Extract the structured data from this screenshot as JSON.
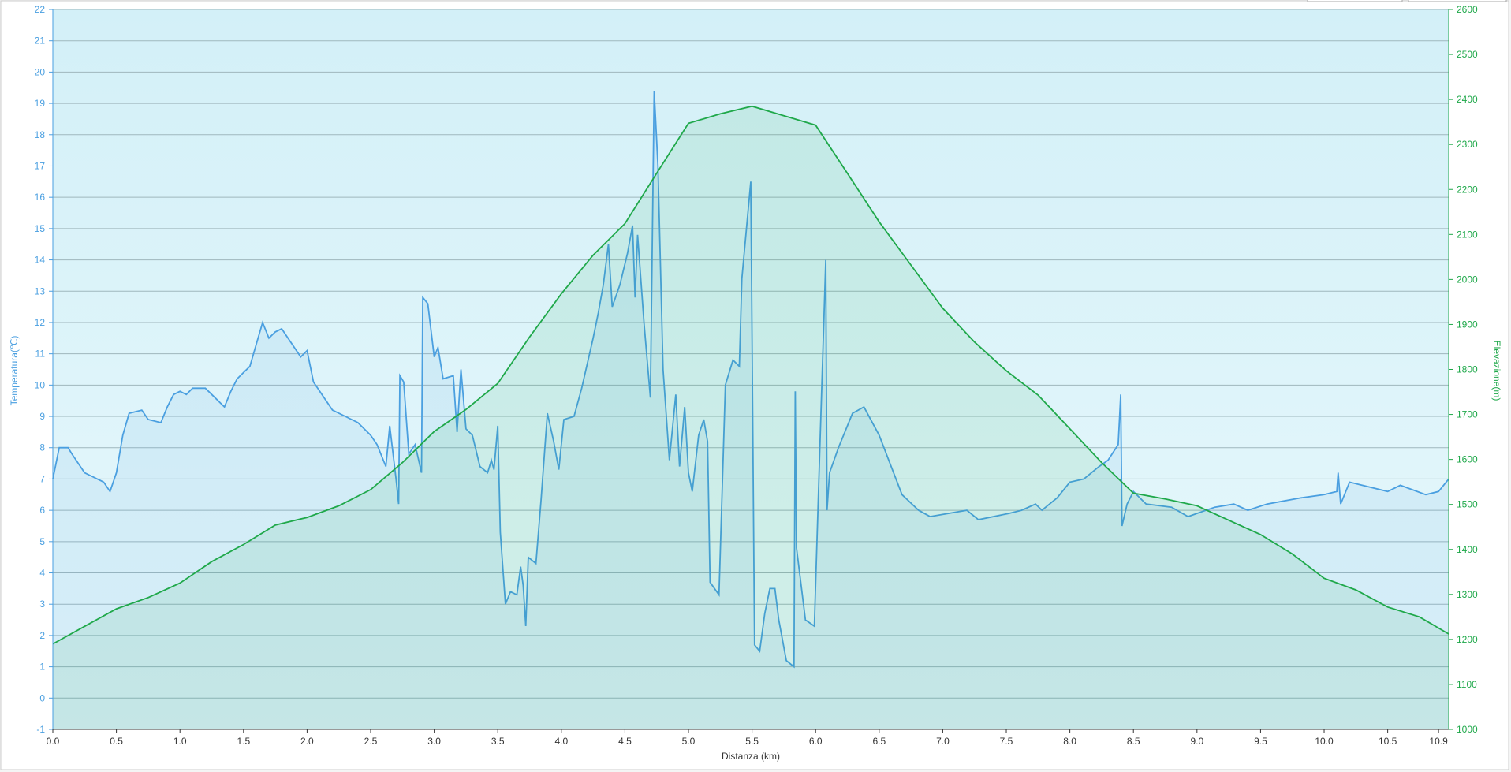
{
  "chart_data": {
    "type": "line",
    "xlabel": "Distanza  (km)",
    "ylabel": "Temperatura(℃)",
    "y2label": "Elevazione(m)",
    "grid": true,
    "xlim": [
      0,
      10.98
    ],
    "xticks": [
      {
        "value": 0,
        "label": "0.0"
      },
      0.5,
      {
        "value": 1,
        "label": "1.0"
      },
      1.5,
      {
        "value": 2,
        "label": "2.0"
      },
      2.5,
      {
        "value": 3,
        "label": "3.0"
      },
      3.5,
      {
        "value": 4,
        "label": "4.0"
      },
      4.5,
      {
        "value": 5,
        "label": "5.0"
      },
      5.5,
      {
        "value": 6,
        "label": "6.0"
      },
      6.5,
      {
        "value": 7,
        "label": "7.0"
      },
      7.5,
      {
        "value": 8,
        "label": "8.0"
      },
      8.5,
      {
        "value": 9,
        "label": "9.0"
      },
      9.5,
      {
        "value": 10,
        "label": "10.0"
      },
      10.5,
      10.9
    ],
    "ylim": [
      -1,
      22
    ],
    "yticks": [
      -1,
      0,
      1,
      2,
      3,
      4,
      5,
      6,
      7,
      8,
      9,
      10,
      11,
      12,
      13,
      14,
      15,
      16,
      17,
      18,
      19,
      20,
      21,
      22
    ],
    "y2lim": [
      1000,
      2600
    ],
    "y2ticks": [
      1000,
      1100,
      1200,
      1300,
      1400,
      1500,
      1600,
      1700,
      1800,
      1900,
      2000,
      2100,
      2200,
      2300,
      2400,
      2500,
      2600
    ],
    "series": [
      {
        "name": "Temperatura",
        "color": "#4a9fe0",
        "axis": "y",
        "x": [
          0,
          0.05,
          0.12,
          0.15,
          0.25,
          0.3,
          0.35,
          0.4,
          0.45,
          0.5,
          0.55,
          0.6,
          0.7,
          0.75,
          0.85,
          0.9,
          0.95,
          1.0,
          1.05,
          1.1,
          1.2,
          1.3,
          1.35,
          1.4,
          1.45,
          1.55,
          1.6,
          1.65,
          1.7,
          1.75,
          1.8,
          1.85,
          1.9,
          1.95,
          2.0,
          2.05,
          2.15,
          2.2,
          2.3,
          2.4,
          2.5,
          2.55,
          2.62,
          2.65,
          2.7,
          2.72,
          2.73,
          2.76,
          2.8,
          2.85,
          2.9,
          2.91,
          2.95,
          3.0,
          3.03,
          3.07,
          3.15,
          3.18,
          3.21,
          3.25,
          3.3,
          3.36,
          3.42,
          3.45,
          3.47,
          3.5,
          3.52,
          3.56,
          3.6,
          3.65,
          3.68,
          3.7,
          3.72,
          3.74,
          3.8,
          3.84,
          3.89,
          3.94,
          3.98,
          4.02,
          4.1,
          4.16,
          4.25,
          4.29,
          4.33,
          4.37,
          4.4,
          4.46,
          4.52,
          4.56,
          4.58,
          4.6,
          4.65,
          4.7,
          4.73,
          4.76,
          4.8,
          4.85,
          4.9,
          4.93,
          4.97,
          5.0,
          5.03,
          5.08,
          5.12,
          5.15,
          5.17,
          5.24,
          5.29,
          5.35,
          5.4,
          5.42,
          5.49,
          5.52,
          5.56,
          5.6,
          5.64,
          5.68,
          5.71,
          5.77,
          5.83,
          5.84,
          5.85,
          5.92,
          5.99,
          6.03,
          6.08,
          6.09,
          6.11,
          6.18,
          6.29,
          6.38,
          6.5,
          6.68,
          6.81,
          6.9,
          7.19,
          7.28,
          7.52,
          7.62,
          7.73,
          7.78,
          7.9,
          8.0,
          8.11,
          8.23,
          8.3,
          8.38,
          8.4,
          8.41,
          8.45,
          8.5,
          8.6,
          8.8,
          8.93,
          9.14,
          9.29,
          9.4,
          9.55,
          9.82,
          10.0,
          10.1,
          10.11,
          10.13,
          10.2,
          10.3,
          10.5,
          10.6,
          10.8,
          10.9,
          10.98
        ],
        "values": [
          7.0,
          8.0,
          8.0,
          7.8,
          7.2,
          7.1,
          7.0,
          6.9,
          6.6,
          7.2,
          8.4,
          9.1,
          9.2,
          8.9,
          8.8,
          9.3,
          9.7,
          9.8,
          9.7,
          9.9,
          9.9,
          9.5,
          9.3,
          9.8,
          10.2,
          10.6,
          11.3,
          12.0,
          11.5,
          11.7,
          11.8,
          11.5,
          11.2,
          10.9,
          11.1,
          10.1,
          9.5,
          9.2,
          9.0,
          8.8,
          8.4,
          8.1,
          7.4,
          8.7,
          7.0,
          6.2,
          10.3,
          10.1,
          7.8,
          8.1,
          7.2,
          12.8,
          12.6,
          10.9,
          11.2,
          10.2,
          10.3,
          8.5,
          10.5,
          8.6,
          8.4,
          7.4,
          7.2,
          7.6,
          7.3,
          8.7,
          5.3,
          3.0,
          3.4,
          3.3,
          4.2,
          3.6,
          2.3,
          4.5,
          4.3,
          6.3,
          9.1,
          8.2,
          7.3,
          8.9,
          9.0,
          9.9,
          11.5,
          12.3,
          13.2,
          14.5,
          12.5,
          13.2,
          14.2,
          15.1,
          12.8,
          14.8,
          12.0,
          9.6,
          19.4,
          17.0,
          10.5,
          7.6,
          9.7,
          7.4,
          9.3,
          7.2,
          6.6,
          8.4,
          8.9,
          8.2,
          3.7,
          3.3,
          10.0,
          10.8,
          10.6,
          13.4,
          16.5,
          1.7,
          1.5,
          2.7,
          3.5,
          3.5,
          2.5,
          1.2,
          1.0,
          9.8,
          4.8,
          2.5,
          2.3,
          7.5,
          14.0,
          6.0,
          7.2,
          8.0,
          9.1,
          9.3,
          8.4,
          6.5,
          6.0,
          5.8,
          6.0,
          5.7,
          5.9,
          6.0,
          6.2,
          6.0,
          6.4,
          6.9,
          7.0,
          7.4,
          7.6,
          8.1,
          9.7,
          5.5,
          6.2,
          6.6,
          6.2,
          6.1,
          5.8,
          6.1,
          6.2,
          6.0,
          6.2,
          6.4,
          6.5,
          6.6,
          7.2,
          6.2,
          6.9,
          6.8,
          6.6,
          6.8,
          6.5,
          6.6,
          7.0
        ]
      },
      {
        "name": "Elevazione",
        "color": "#1fa84a",
        "axis": "y2",
        "x": [
          0,
          0.25,
          0.5,
          0.75,
          1.0,
          1.25,
          1.5,
          1.75,
          2.0,
          2.25,
          2.5,
          2.75,
          3.0,
          3.25,
          3.5,
          3.75,
          4.0,
          4.25,
          4.5,
          4.75,
          5.0,
          5.25,
          5.5,
          5.75,
          6.0,
          6.25,
          6.5,
          6.75,
          7.0,
          7.25,
          7.5,
          7.75,
          8.0,
          8.25,
          8.5,
          8.75,
          9.0,
          9.25,
          9.5,
          9.75,
          10.0,
          10.25,
          10.5,
          10.75,
          10.98
        ],
        "values": [
          1190,
          1229,
          1268,
          1293,
          1325,
          1373,
          1411,
          1454,
          1471,
          1497,
          1533,
          1593,
          1662,
          1711,
          1769,
          1872,
          1968,
          2054,
          2124,
          2236,
          2347,
          2368,
          2385,
          2364,
          2343,
          2236,
          2128,
          2032,
          1936,
          1861,
          1797,
          1743,
          1668,
          1593,
          1525,
          1512,
          1497,
          1465,
          1433,
          1390,
          1336,
          1310,
          1272,
          1250,
          1212
        ]
      }
    ]
  }
}
